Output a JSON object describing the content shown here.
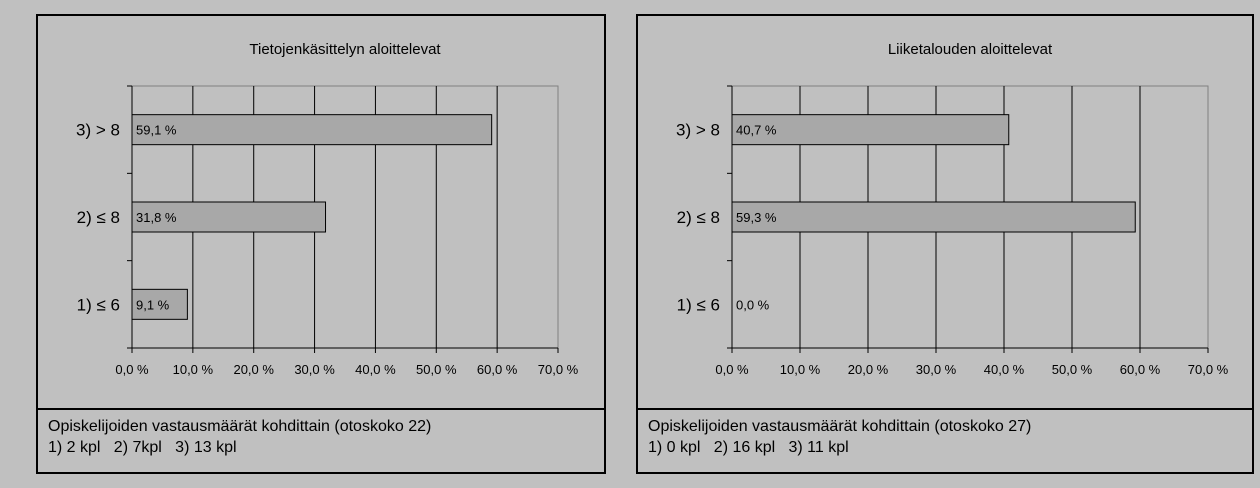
{
  "chart_data": [
    {
      "type": "bar",
      "orientation": "horizontal",
      "title": "Tietojenkäsittelyn aloittelevat",
      "categories": [
        "3)  > 8",
        "2)  ≤ 8",
        "1)  ≤ 6"
      ],
      "values": [
        59.1,
        31.8,
        9.1
      ],
      "data_labels": [
        "59,1 %",
        "31,8 %",
        "9,1 %"
      ],
      "xlim": [
        0,
        70
      ],
      "x_ticks": [
        "0,0 %",
        "10,0 %",
        "20,0 %",
        "30,0 %",
        "40,0 %",
        "50,0 %",
        "60,0 %",
        "70,0 %"
      ],
      "grid": true,
      "bar_color": "#a8a8a8",
      "caption": [
        "Opiskelijoiden vastausmäärät kohdittain (otoskoko 22)",
        "1) 2 kpl   2) 7kpl   3) 13 kpl"
      ]
    },
    {
      "type": "bar",
      "orientation": "horizontal",
      "title": "Liiketalouden aloittelevat",
      "categories": [
        "3)  > 8",
        "2)  ≤ 8",
        "1)  ≤ 6"
      ],
      "values": [
        40.7,
        59.3,
        0.0
      ],
      "data_labels": [
        "40,7 %",
        "59,3 %",
        "0,0 %"
      ],
      "xlim": [
        0,
        70
      ],
      "x_ticks": [
        "0,0 %",
        "10,0 %",
        "20,0 %",
        "30,0 %",
        "40,0 %",
        "50,0 %",
        "60,0 %",
        "70,0 %"
      ],
      "grid": true,
      "bar_color": "#a8a8a8",
      "caption": [
        "Opiskelijoiden vastausmäärät kohdittain (otoskoko 27)",
        "1) 0 kpl   2) 16 kpl   3) 11 kpl"
      ]
    }
  ]
}
